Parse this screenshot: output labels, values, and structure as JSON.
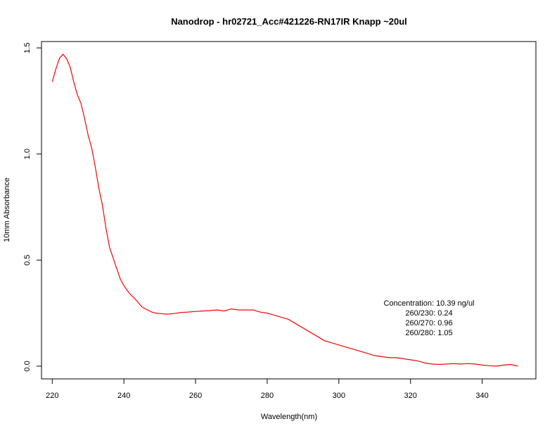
{
  "chart_data": {
    "type": "line",
    "title": "Nanodrop - hr02721_Acc#421226-RN17IR Knapp ~20ul",
    "xlabel": "Wavelength(nm)",
    "ylabel": "10mm Absorbance",
    "xlim": [
      217,
      355
    ],
    "ylim": [
      -0.06,
      1.53
    ],
    "xticks": [
      220,
      240,
      260,
      280,
      300,
      320,
      340
    ],
    "xtick_labels": [
      "220",
      "240",
      "260",
      "280",
      "300",
      "320",
      "340"
    ],
    "yticks": [
      0.0,
      0.5,
      1.0,
      1.5
    ],
    "ytick_labels": [
      "0.0",
      "0.5",
      "1.0",
      "1.5"
    ],
    "grid": false,
    "line_color": "#ff0000",
    "series": [
      {
        "x": [
          220,
          221,
          222,
          223,
          224,
          225,
          226,
          227,
          228,
          229,
          230,
          231,
          232,
          233,
          234,
          235,
          236,
          237,
          238,
          239,
          240,
          241,
          242,
          243,
          244,
          245,
          246,
          247,
          248,
          249,
          250,
          252,
          254,
          256,
          258,
          260,
          262,
          264,
          266,
          268,
          270,
          272,
          274,
          276,
          278,
          280,
          282,
          284,
          286,
          288,
          290,
          292,
          294,
          296,
          298,
          300,
          302,
          304,
          306,
          308,
          310,
          312,
          314,
          316,
          318,
          320,
          322,
          324,
          326,
          328,
          330,
          332,
          334,
          336,
          338,
          340,
          342,
          344,
          346,
          348,
          350
        ],
        "y": [
          1.34,
          1.4,
          1.45,
          1.47,
          1.45,
          1.41,
          1.34,
          1.28,
          1.24,
          1.17,
          1.09,
          1.03,
          0.94,
          0.84,
          0.76,
          0.65,
          0.56,
          0.51,
          0.46,
          0.41,
          0.38,
          0.355,
          0.335,
          0.32,
          0.3,
          0.28,
          0.27,
          0.262,
          0.253,
          0.25,
          0.248,
          0.245,
          0.248,
          0.253,
          0.255,
          0.258,
          0.26,
          0.262,
          0.265,
          0.26,
          0.27,
          0.265,
          0.265,
          0.265,
          0.255,
          0.25,
          0.24,
          0.23,
          0.22,
          0.2,
          0.18,
          0.16,
          0.14,
          0.12,
          0.11,
          0.1,
          0.09,
          0.08,
          0.07,
          0.06,
          0.05,
          0.045,
          0.04,
          0.04,
          0.035,
          0.03,
          0.025,
          0.015,
          0.01,
          0.008,
          0.01,
          0.012,
          0.01,
          0.012,
          0.01,
          0.005,
          0.002,
          0.0,
          0.005,
          0.008,
          0.0
        ]
      }
    ],
    "annotations": [
      "Concentration: 10.39 ng/ul",
      "260/230: 0.24",
      "260/270: 0.96",
      "260/280: 1.05"
    ]
  }
}
